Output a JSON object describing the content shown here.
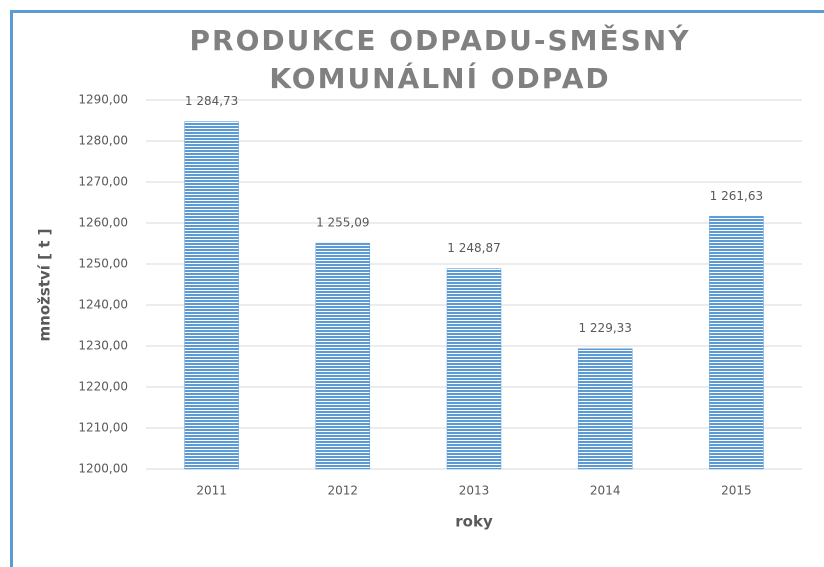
{
  "chart_data": {
    "type": "bar",
    "title": "PRODUKCE ODPADU-SMĚSNÝ KOMUNÁLNÍ ODPAD",
    "x_label": "roky",
    "y_label": "množství [ t ]",
    "categories": [
      "2011",
      "2012",
      "2013",
      "2014",
      "2015"
    ],
    "values": [
      1284.73,
      1255.09,
      1248.87,
      1229.33,
      1261.63
    ],
    "value_labels": [
      "1 284,73",
      "1 255,09",
      "1 248,87",
      "1 229,33",
      "1 261,63"
    ],
    "color": "#5b9bd5",
    "ylim": [
      1200,
      1290
    ],
    "yticks": [
      {
        "value": 1200,
        "label": "1200,00"
      },
      {
        "value": 1210,
        "label": "1210,00"
      },
      {
        "value": 1220,
        "label": "1220,00"
      },
      {
        "value": 1230,
        "label": "1230,00"
      },
      {
        "value": 1240,
        "label": "1240,00"
      },
      {
        "value": 1250,
        "label": "1250,00"
      },
      {
        "value": 1260,
        "label": "1260,00"
      },
      {
        "value": 1270,
        "label": "1270,00"
      },
      {
        "value": 1280,
        "label": "1280,00"
      },
      {
        "value": 1290,
        "label": "1290,00"
      }
    ],
    "grid": true
  }
}
